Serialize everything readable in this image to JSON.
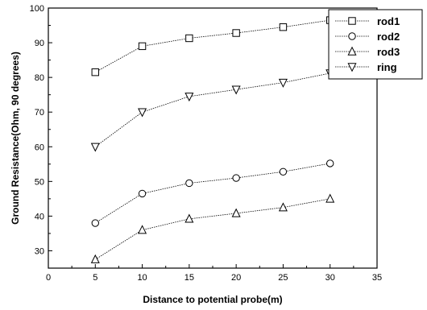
{
  "chart_data": {
    "type": "line",
    "title": "",
    "xlabel": "Distance to potential probe(m)",
    "ylabel": "Ground Resistance(Ohm, 90 degrees)",
    "xlim": [
      0,
      35
    ],
    "ylim": [
      25,
      100
    ],
    "x_ticks": [
      "0",
      "5",
      "10",
      "15",
      "20",
      "25",
      "30",
      "35"
    ],
    "y_ticks": [
      "30",
      "40",
      "50",
      "60",
      "70",
      "80",
      "90",
      "100"
    ],
    "grid": false,
    "legend_position": "top-right",
    "x": [
      5,
      10,
      15,
      20,
      25,
      30
    ],
    "series": [
      {
        "name": "rod1",
        "marker": "square",
        "values": [
          81.5,
          89,
          91.3,
          92.8,
          94.5,
          96.5
        ]
      },
      {
        "name": "rod2",
        "marker": "circle",
        "values": [
          38,
          46.5,
          49.5,
          51,
          52.8,
          55.2
        ]
      },
      {
        "name": "rod3",
        "marker": "triangle-up",
        "values": [
          27.5,
          36,
          39.2,
          40.8,
          42.5,
          45
        ]
      },
      {
        "name": "ring",
        "marker": "triangle-down",
        "values": [
          60,
          70,
          74.5,
          76.5,
          78.5,
          81.2
        ]
      }
    ]
  }
}
